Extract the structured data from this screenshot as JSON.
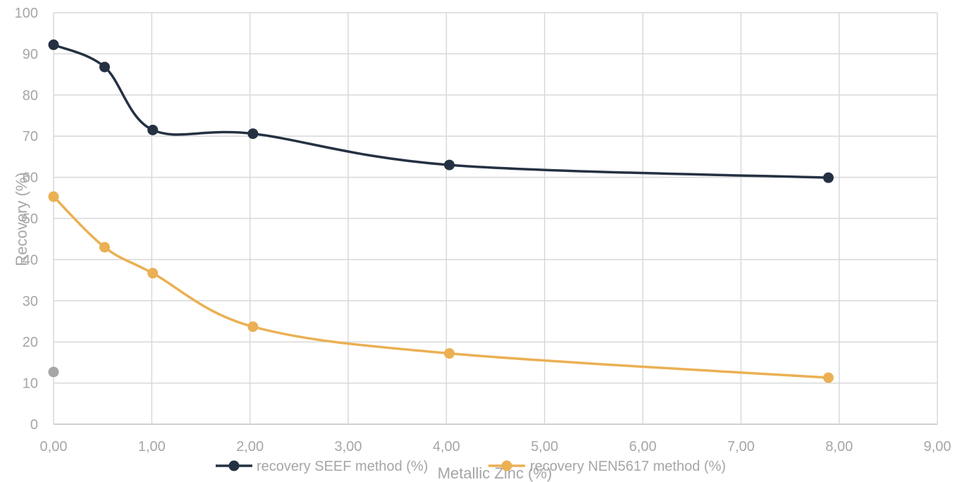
{
  "chart_data": {
    "type": "line",
    "xlabel": "Metallic Zinc (%)",
    "ylabel": "Recovery (%)",
    "xlim": [
      0,
      9
    ],
    "ylim": [
      0,
      100
    ],
    "x_ticks": [
      "0,00",
      "1,00",
      "2,00",
      "3,00",
      "4,00",
      "5,00",
      "6,00",
      "7,00",
      "8,00",
      "9,00"
    ],
    "y_ticks": [
      "0",
      "10",
      "20",
      "30",
      "40",
      "50",
      "60",
      "70",
      "80",
      "90",
      "100"
    ],
    "grid": true,
    "legend_position": "bottom",
    "smooth": true,
    "series": [
      {
        "name": "recovery SEEF method (%)",
        "color": "#253143",
        "x": [
          0.0,
          0.52,
          1.01,
          2.03,
          4.03,
          7.89
        ],
        "y": [
          92.2,
          86.8,
          71.5,
          70.6,
          63.0,
          59.9
        ]
      },
      {
        "name": "recovery NEN5617 method (%)",
        "color": "#ebb053",
        "x": [
          0.0,
          0.52,
          1.01,
          2.03,
          4.03,
          7.89
        ],
        "y": [
          55.3,
          43.0,
          36.7,
          23.7,
          17.2,
          11.3
        ]
      }
    ],
    "extra_points": [
      {
        "x": 0.0,
        "y": 12.7,
        "color": "#a6a6a6"
      }
    ]
  }
}
